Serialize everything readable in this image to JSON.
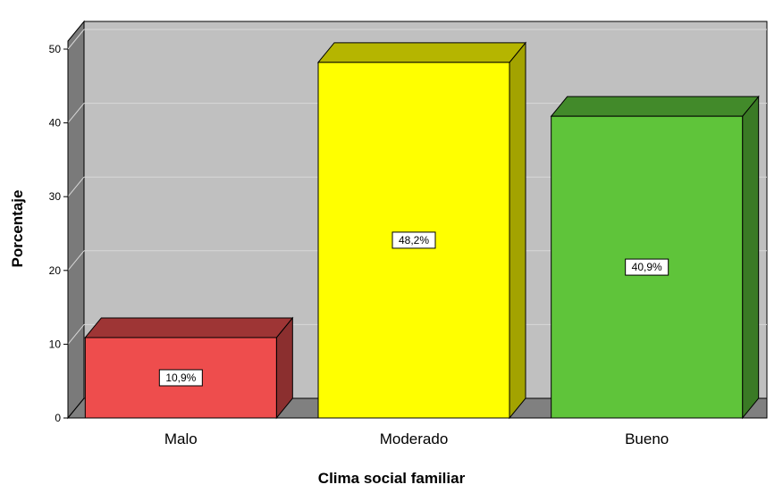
{
  "chart_data": {
    "type": "bar",
    "title": "",
    "xlabel": "Clima social familiar",
    "ylabel": "Porcentaje",
    "categories": [
      "Malo",
      "Moderado",
      "Bueno"
    ],
    "values": [
      10.9,
      48.2,
      40.9
    ],
    "data_labels": [
      "10,9%",
      "48,2%",
      "40,9%"
    ],
    "ylim": [
      0,
      50
    ],
    "yticks": [
      "0",
      "10",
      "20",
      "30",
      "40",
      "50"
    ],
    "grid": true,
    "legend": "none",
    "colors": {
      "bar_fronts": [
        "#ee4d4d",
        "#ffff00",
        "#5fc43a"
      ],
      "bar_sides": [
        "#8b2f2f",
        "#a3a300",
        "#3a7a25"
      ],
      "bar_tops": [
        "#9e3535",
        "#b5b500",
        "#428a2a"
      ],
      "plot_back": "#c0c0c0",
      "plot_wall": "#7a7a7a",
      "plot_floor": "#808080"
    }
  }
}
